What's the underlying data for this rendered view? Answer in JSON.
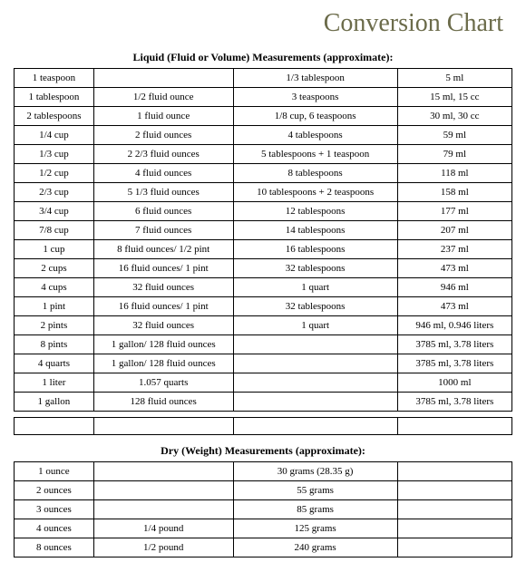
{
  "title": "Conversion Chart",
  "liquid": {
    "heading": "Liquid (Fluid or Volume) Measurements (approximate):",
    "rows": [
      [
        "1 teaspoon",
        "",
        "1/3 tablespoon",
        "5 ml"
      ],
      [
        "1 tablespoon",
        "1/2 fluid ounce",
        "3 teaspoons",
        "15 ml, 15 cc"
      ],
      [
        "2 tablespoons",
        "1 fluid ounce",
        "1/8 cup, 6 teaspoons",
        "30 ml, 30 cc"
      ],
      [
        "1/4 cup",
        "2 fluid ounces",
        "4 tablespoons",
        "59 ml"
      ],
      [
        "1/3 cup",
        "2 2/3 fluid ounces",
        "5 tablespoons + 1 teaspoon",
        "79 ml"
      ],
      [
        "1/2 cup",
        "4 fluid ounces",
        "8 tablespoons",
        "118 ml"
      ],
      [
        "2/3 cup",
        "5 1/3 fluid ounces",
        "10 tablespoons + 2 teaspoons",
        "158 ml"
      ],
      [
        "3/4 cup",
        "6 fluid ounces",
        "12 tablespoons",
        "177 ml"
      ],
      [
        "7/8 cup",
        "7 fluid ounces",
        "14 tablespoons",
        "207 ml"
      ],
      [
        "1 cup",
        "8 fluid ounces/ 1/2 pint",
        "16 tablespoons",
        "237 ml"
      ],
      [
        "2 cups",
        "16 fluid ounces/ 1 pint",
        "32 tablespoons",
        "473 ml"
      ],
      [
        "4 cups",
        "32 fluid ounces",
        "1 quart",
        "946 ml"
      ],
      [
        "1 pint",
        "16 fluid ounces/ 1 pint",
        "32 tablespoons",
        "473 ml"
      ],
      [
        "2 pints",
        "32 fluid ounces",
        "1 quart",
        "946 ml,  0.946 liters"
      ],
      [
        "8 pints",
        "1 gallon/ 128 fluid ounces",
        "",
        "3785 ml,  3.78 liters"
      ],
      [
        "4 quarts",
        "1 gallon/ 128 fluid ounces",
        "",
        "3785 ml,  3.78 liters"
      ],
      [
        "1 liter",
        "1.057 quarts",
        "",
        "1000 ml"
      ],
      [
        "1 gallon",
        "128 fluid ounces",
        "",
        "3785 ml,  3.78 liters"
      ]
    ]
  },
  "dry": {
    "heading": "Dry (Weight) Measurements (approximate):",
    "rows": [
      [
        "1 ounce",
        "",
        "30 grams  (28.35 g)",
        ""
      ],
      [
        "2 ounces",
        "",
        "55 grams",
        ""
      ],
      [
        "3 ounces",
        "",
        "85 grams",
        ""
      ],
      [
        "4 ounces",
        "1/4 pound",
        "125 grams",
        ""
      ],
      [
        "8 ounces",
        "1/2 pound",
        "240 grams",
        ""
      ]
    ]
  },
  "style": {
    "title_color": "#6b6b4a",
    "border_color": "#000000",
    "background": "#ffffff",
    "body_fontsize": 11,
    "title_fontsize": 28,
    "heading_fontsize": 12
  }
}
